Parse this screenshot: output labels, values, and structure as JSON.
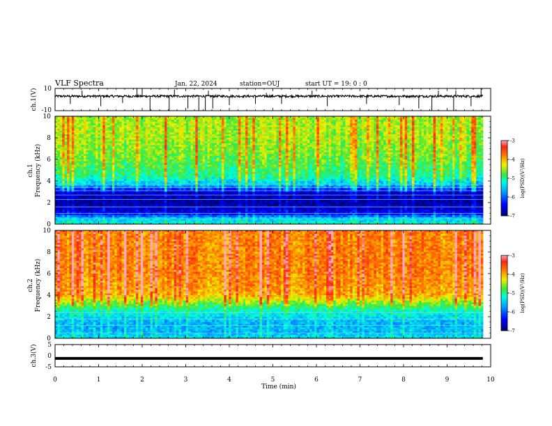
{
  "header": {
    "title": "VLF Spectra",
    "date": "Jan. 22, 2024",
    "station": "station=OUJ",
    "start": "start  UT =   19: 0  : 0"
  },
  "chart_data": [
    {
      "type": "line",
      "id": "ch1-waveform",
      "ylabel": "ch.1(V)",
      "xlim": [
        0,
        10
      ],
      "ylim": [
        -10,
        10
      ],
      "yticks": [
        "10",
        "-10"
      ],
      "baseline_value": 3,
      "noise_amplitude": 1,
      "spikes": [
        {
          "t": 0.35,
          "v": -4
        },
        {
          "t": 0.62,
          "v": 8
        },
        {
          "t": 1.05,
          "v": -6
        },
        {
          "t": 1.55,
          "v": -3
        },
        {
          "t": 1.88,
          "v": 10
        },
        {
          "t": 2.0,
          "v": 10
        },
        {
          "t": 2.18,
          "v": -10
        },
        {
          "t": 2.62,
          "v": -10
        },
        {
          "t": 2.74,
          "v": 9
        },
        {
          "t": 3.05,
          "v": -8
        },
        {
          "t": 3.3,
          "v": -10
        },
        {
          "t": 3.45,
          "v": -10
        },
        {
          "t": 3.52,
          "v": 8
        },
        {
          "t": 3.62,
          "v": -8
        },
        {
          "t": 4.0,
          "v": -5
        },
        {
          "t": 4.6,
          "v": -4
        },
        {
          "t": 4.85,
          "v": 6
        },
        {
          "t": 5.2,
          "v": -4
        },
        {
          "t": 5.9,
          "v": 8
        },
        {
          "t": 6.25,
          "v": -6
        },
        {
          "t": 7.15,
          "v": -4
        },
        {
          "t": 7.9,
          "v": -5
        },
        {
          "t": 8.35,
          "v": -8
        },
        {
          "t": 8.65,
          "v": -10
        },
        {
          "t": 8.8,
          "v": 8
        },
        {
          "t": 9.15,
          "v": -10
        },
        {
          "t": 9.2,
          "v": 8
        },
        {
          "t": 9.55,
          "v": -6
        },
        {
          "t": 9.78,
          "v": 10
        }
      ]
    },
    {
      "type": "heatmap",
      "id": "ch1-spectrogram",
      "ylabel_line1": "ch.1",
      "ylabel_line2": "Frequency (kHz)",
      "xlim": [
        0,
        9.83
      ],
      "ylim": [
        0,
        10
      ],
      "yticks": [
        "0",
        "2",
        "4",
        "6",
        "8",
        "10"
      ],
      "colorbar": {
        "label": "log(PSD)(V²/Hz)",
        "min": -7,
        "max": -3,
        "ticks": [
          "-3",
          "-4",
          "-5",
          "-6",
          "-7"
        ]
      },
      "profile": [
        {
          "f": 0.0,
          "v": -5.2
        },
        {
          "f": 0.6,
          "v": -5.6
        },
        {
          "f": 1.0,
          "v": -6.5
        },
        {
          "f": 2.0,
          "v": -6.8
        },
        {
          "f": 3.0,
          "v": -6.6
        },
        {
          "f": 3.6,
          "v": -5.6
        },
        {
          "f": 4.5,
          "v": -5.0
        },
        {
          "f": 6.0,
          "v": -4.7
        },
        {
          "f": 8.0,
          "v": -4.5
        },
        {
          "f": 10.0,
          "v": -4.5
        }
      ],
      "lines_khz": [
        0.5,
        1.0,
        1.6,
        2.3,
        2.7,
        3.1,
        3.4,
        3.7
      ]
    },
    {
      "type": "heatmap",
      "id": "ch2-spectrogram",
      "ylabel_line1": "ch.2",
      "ylabel_line2": "Frequency (kHz)",
      "xlim": [
        0,
        9.83
      ],
      "ylim": [
        0,
        10
      ],
      "yticks": [
        "0",
        "2",
        "4",
        "6",
        "8",
        "10"
      ],
      "colorbar": {
        "label": "log(PSD)(V²/Hz)",
        "min": -7,
        "max": -3,
        "ticks": [
          "-3",
          "-4",
          "-5",
          "-6",
          "-7"
        ]
      },
      "profile": [
        {
          "f": 0.0,
          "v": -5.4
        },
        {
          "f": 0.6,
          "v": -5.6
        },
        {
          "f": 1.5,
          "v": -5.6
        },
        {
          "f": 2.5,
          "v": -5.2
        },
        {
          "f": 3.2,
          "v": -4.7
        },
        {
          "f": 4.0,
          "v": -4.0
        },
        {
          "f": 6.0,
          "v": -3.8
        },
        {
          "f": 10.0,
          "v": -3.8
        }
      ],
      "lines_khz": [
        0.5,
        1.2,
        1.8,
        2.4
      ]
    },
    {
      "type": "line",
      "id": "ch3-waveform",
      "ylabel": "ch.3(V)",
      "xlim": [
        0,
        10
      ],
      "ylim": [
        -5,
        5
      ],
      "yticks": [
        "5",
        "0",
        "-5"
      ],
      "level": -1.2
    }
  ],
  "xaxis": {
    "label": "Time (min)",
    "ticks": [
      "0",
      "1",
      "2",
      "3",
      "4",
      "5",
      "6",
      "7",
      "8",
      "9",
      "10"
    ]
  }
}
